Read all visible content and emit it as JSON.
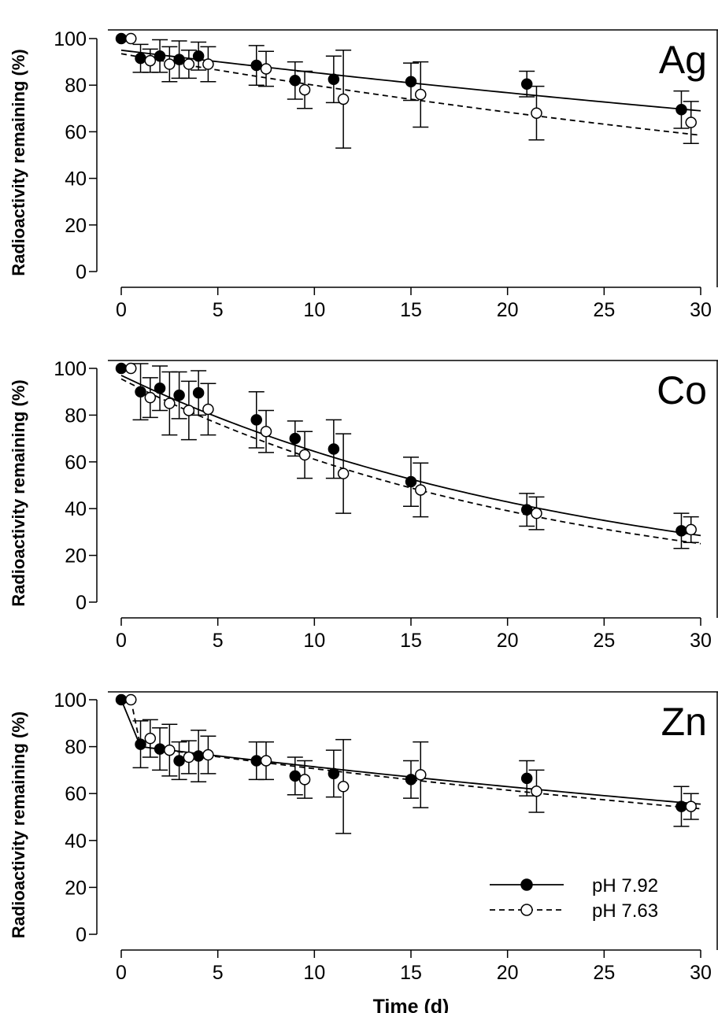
{
  "chart_data": [
    {
      "type": "scatter",
      "panel_label": "Ag",
      "xlabel": "",
      "ylabel": "Radioactivity remaining (%)",
      "xlim": [
        0,
        30
      ],
      "ylim": [
        0,
        100
      ],
      "x_ticks": [
        "0",
        "5",
        "10",
        "15",
        "20",
        "25",
        "30"
      ],
      "y_ticks": [
        "0",
        "20",
        "40",
        "60",
        "80",
        "100"
      ],
      "grid": false,
      "series": [
        {
          "name": "pH 7.92",
          "marker": "filled-circle",
          "line": "solid",
          "x": [
            0,
            1,
            2,
            3,
            4,
            7,
            9,
            11,
            15,
            21,
            29
          ],
          "y": [
            100,
            91.5,
            92.5,
            91,
            92.5,
            88.5,
            82,
            82.5,
            81.5,
            80.5,
            69.5
          ],
          "err": [
            0,
            6,
            7,
            8,
            6,
            8.5,
            8,
            10,
            8,
            5.5,
            8
          ],
          "fit": {
            "y0": 95,
            "y30": 69
          }
        },
        {
          "name": "pH 7.63",
          "marker": "open-circle",
          "line": "dashed",
          "x": [
            0.5,
            1.5,
            2.5,
            3.5,
            4.5,
            7.5,
            9.5,
            11.5,
            15.5,
            21.5,
            29.5
          ],
          "y": [
            100,
            90.5,
            89,
            89,
            89,
            87,
            78,
            74,
            76,
            68,
            64
          ],
          "err": [
            0,
            5,
            7.5,
            6,
            7.5,
            7.5,
            8,
            21,
            14,
            11.5,
            9
          ],
          "fit": {
            "y0": 93.5,
            "y30": 58.5
          }
        }
      ]
    },
    {
      "type": "scatter",
      "panel_label": "Co",
      "xlabel": "",
      "ylabel": "Radioactivity remaining (%)",
      "xlim": [
        0,
        30
      ],
      "ylim": [
        0,
        100
      ],
      "x_ticks": [
        "0",
        "5",
        "10",
        "15",
        "20",
        "25",
        "30"
      ],
      "y_ticks": [
        "0",
        "20",
        "40",
        "60",
        "80",
        "100"
      ],
      "grid": false,
      "series": [
        {
          "name": "pH 7.92",
          "marker": "filled-circle",
          "line": "solid",
          "x": [
            0,
            1,
            2,
            3,
            4,
            7,
            9,
            11,
            15,
            21,
            29
          ],
          "y": [
            100,
            90,
            91.5,
            88.5,
            89.5,
            78,
            70,
            65.5,
            51.5,
            39.5,
            30.5
          ],
          "err": [
            0,
            12,
            9.5,
            10,
            9.5,
            12,
            7.5,
            12.5,
            10.5,
            7,
            7.5
          ],
          "fit": {
            "y0": 97,
            "y30": 28.5
          }
        },
        {
          "name": "pH 7.63",
          "marker": "open-circle",
          "line": "dashed",
          "x": [
            0.5,
            1.5,
            2.5,
            3.5,
            4.5,
            7.5,
            9.5,
            11.5,
            15.5,
            21.5,
            29.5
          ],
          "y": [
            100,
            87.5,
            85,
            82,
            82.5,
            73,
            63,
            55,
            48,
            38,
            31
          ],
          "err": [
            0,
            8.5,
            13.5,
            12.5,
            11,
            9,
            10,
            17,
            11.5,
            7,
            5.5
          ],
          "fit": {
            "y0": 95.5,
            "y30": 25
          }
        }
      ]
    },
    {
      "type": "scatter",
      "panel_label": "Zn",
      "xlabel": "Time (d)",
      "ylabel": "Radioactivity remaining (%)",
      "xlim": [
        0,
        30
      ],
      "ylim": [
        0,
        100
      ],
      "x_ticks": [
        "0",
        "5",
        "10",
        "15",
        "20",
        "25",
        "30"
      ],
      "y_ticks": [
        "0",
        "20",
        "40",
        "60",
        "80",
        "100"
      ],
      "grid": false,
      "legend_position": "bottom-right",
      "series": [
        {
          "name": "pH 7.92",
          "marker": "filled-circle",
          "line": "solid",
          "x": [
            0,
            1,
            2,
            3,
            4,
            7,
            9,
            11,
            15,
            21,
            29
          ],
          "y": [
            100,
            81,
            79,
            74,
            76,
            74,
            67.5,
            68.5,
            66,
            66.5,
            54.5
          ],
          "err": [
            0,
            10,
            9,
            8,
            11,
            8,
            8,
            10,
            8,
            7.5,
            8.5
          ],
          "fit": {
            "knot_x": 1,
            "knot_y": 80,
            "y30": 55.5
          }
        },
        {
          "name": "pH 7.63",
          "marker": "open-circle",
          "line": "dashed",
          "x": [
            0.5,
            1.5,
            2.5,
            3.5,
            4.5,
            7.5,
            9.5,
            11.5,
            15.5,
            21.5,
            29.5
          ],
          "y": [
            100,
            83.5,
            78.5,
            75.5,
            76.5,
            74,
            66,
            63,
            68,
            61,
            54.5
          ],
          "err": [
            0,
            8,
            11,
            7,
            8,
            8,
            8,
            20,
            14,
            9,
            5.5
          ],
          "fit": {
            "knot_x": 1,
            "knot_y": 80,
            "y30": 53.5
          }
        }
      ]
    }
  ],
  "legend": {
    "items": [
      {
        "label": "pH 7.92",
        "marker": "filled-circle",
        "line": "solid"
      },
      {
        "label": "pH 7.63",
        "marker": "open-circle",
        "line": "dashed"
      }
    ]
  }
}
